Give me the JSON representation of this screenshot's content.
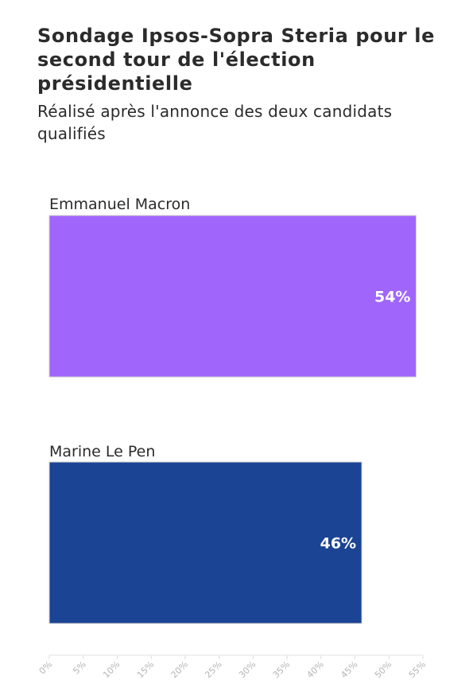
{
  "chart_data": {
    "type": "bar",
    "orientation": "horizontal",
    "title": "Sondage Ipsos-Sopra Steria pour le second tour de l'élection présidentielle",
    "subtitle": "Réalisé après l'annonce des deux candidats qualifiés",
    "categories": [
      "Emmanuel Macron",
      "Marine Le Pen"
    ],
    "values": [
      54,
      46
    ],
    "value_labels": [
      "54%",
      "46%"
    ],
    "colors": [
      "#a066fb",
      "#1b4494"
    ],
    "xlim": [
      0,
      55
    ],
    "xticks": [
      "0%",
      "5%",
      "10%",
      "15%",
      "20%",
      "25%",
      "30%",
      "35%",
      "40%",
      "45%",
      "50%",
      "55%"
    ],
    "xtick_values": [
      0,
      5,
      10,
      15,
      20,
      25,
      30,
      35,
      40,
      45,
      50,
      55
    ],
    "grid": false,
    "legend": "none"
  }
}
